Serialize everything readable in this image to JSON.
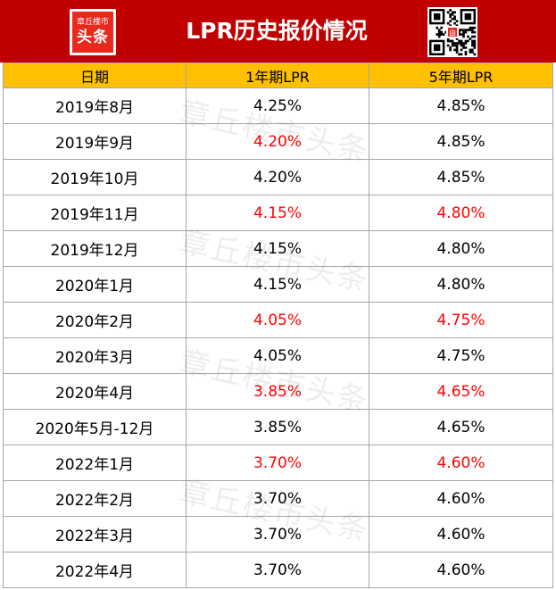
{
  "header": {
    "title": "LPR历史报价情况",
    "logo_small": "章丘楼市",
    "logo_big": "头条",
    "qr_center": "由",
    "brand_color": "#c00000"
  },
  "table": {
    "header_color": "#ffc000",
    "highlight_color": "#ff0000",
    "columns": [
      "日期",
      "1年期LPR",
      "5年期LPR"
    ],
    "rows": [
      {
        "date": "2019年8月",
        "lpr1y": "4.25%",
        "lpr5y": "4.85%",
        "lpr1y_changed": false,
        "lpr5y_changed": false
      },
      {
        "date": "2019年9月",
        "lpr1y": "4.20%",
        "lpr5y": "4.85%",
        "lpr1y_changed": true,
        "lpr5y_changed": false
      },
      {
        "date": "2019年10月",
        "lpr1y": "4.20%",
        "lpr5y": "4.85%",
        "lpr1y_changed": false,
        "lpr5y_changed": false
      },
      {
        "date": "2019年11月",
        "lpr1y": "4.15%",
        "lpr5y": "4.80%",
        "lpr1y_changed": true,
        "lpr5y_changed": true
      },
      {
        "date": "2019年12月",
        "lpr1y": "4.15%",
        "lpr5y": "4.80%",
        "lpr1y_changed": false,
        "lpr5y_changed": false
      },
      {
        "date": "2020年1月",
        "lpr1y": "4.15%",
        "lpr5y": "4.80%",
        "lpr1y_changed": false,
        "lpr5y_changed": false
      },
      {
        "date": "2020年2月",
        "lpr1y": "4.05%",
        "lpr5y": "4.75%",
        "lpr1y_changed": true,
        "lpr5y_changed": true
      },
      {
        "date": "2020年3月",
        "lpr1y": "4.05%",
        "lpr5y": "4.75%",
        "lpr1y_changed": false,
        "lpr5y_changed": false
      },
      {
        "date": "2020年4月",
        "lpr1y": "3.85%",
        "lpr5y": "4.65%",
        "lpr1y_changed": true,
        "lpr5y_changed": true
      },
      {
        "date": "2020年5月-12月",
        "lpr1y": "3.85%",
        "lpr5y": "4.65%",
        "lpr1y_changed": false,
        "lpr5y_changed": false
      },
      {
        "date": "2022年1月",
        "lpr1y": "3.70%",
        "lpr5y": "4.60%",
        "lpr1y_changed": true,
        "lpr5y_changed": true
      },
      {
        "date": "2022年2月",
        "lpr1y": "3.70%",
        "lpr5y": "4.60%",
        "lpr1y_changed": false,
        "lpr5y_changed": false
      },
      {
        "date": "2022年3月",
        "lpr1y": "3.70%",
        "lpr5y": "4.60%",
        "lpr1y_changed": false,
        "lpr5y_changed": false
      },
      {
        "date": "2022年4月",
        "lpr1y": "3.70%",
        "lpr5y": "4.60%",
        "lpr1y_changed": false,
        "lpr5y_changed": false
      }
    ]
  },
  "watermark": {
    "text": "章丘楼市头条"
  }
}
